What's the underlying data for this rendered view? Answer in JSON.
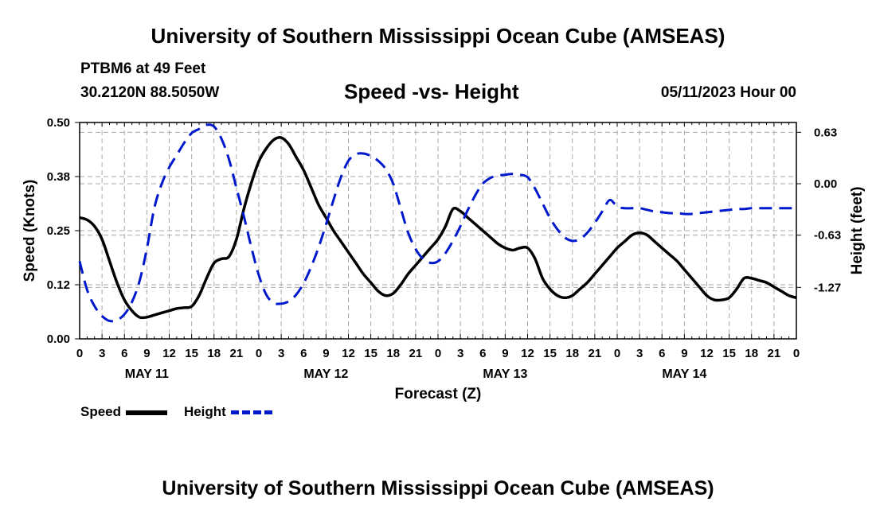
{
  "header": {
    "top_title": "University of Southern Mississippi Ocean Cube (AMSEAS)",
    "station": "PTBM6 at 49 Feet",
    "coords": "30.2120N  88.5050W",
    "date": "05/11/2023 Hour 00",
    "bottom_title": "University of Southern Mississippi Ocean Cube (AMSEAS)"
  },
  "chart_data": {
    "type": "line",
    "title": "Speed -vs- Height",
    "xlabel": "Forecast (Z)",
    "ylabel": "Speed (Knots)",
    "y2label": "Height (feet)",
    "xlim": [
      0,
      96
    ],
    "ylim": [
      0,
      0.5
    ],
    "y2lim": [
      -1.9,
      0.75
    ],
    "x_tick_labels": [
      "0",
      "3",
      "6",
      "9",
      "12",
      "15",
      "18",
      "21",
      "0",
      "3",
      "6",
      "9",
      "12",
      "15",
      "18",
      "21",
      "0",
      "3",
      "6",
      "9",
      "12",
      "15",
      "18",
      "21",
      "0",
      "3",
      "6",
      "9",
      "12",
      "15",
      "18",
      "21",
      "0"
    ],
    "y_tick_labels": [
      "0.00",
      "0.12",
      "0.25",
      "0.38",
      "0.50"
    ],
    "y_tick_values": [
      0,
      0.125,
      0.25,
      0.375,
      0.5
    ],
    "y2_tick_labels": [
      "-1.27",
      "-0.63",
      "0.00",
      "0.63"
    ],
    "y2_tick_values": [
      -1.27,
      -0.63,
      0.0,
      0.63
    ],
    "day_labels": [
      "MAY 11",
      "MAY 12",
      "MAY 13",
      "MAY 14"
    ],
    "day_label_x": [
      9,
      33,
      57,
      81
    ],
    "series": [
      {
        "name": "Speed",
        "color": "#000000",
        "dash": "solid",
        "axis": "left",
        "x": [
          0,
          1,
          2,
          3,
          4,
          5,
          6,
          7,
          8,
          9,
          10,
          11,
          12,
          13,
          14,
          15,
          16,
          17,
          18,
          19,
          20,
          21,
          22,
          23,
          24,
          25,
          26,
          27,
          28,
          29,
          30,
          31,
          32,
          33,
          34,
          35,
          36,
          37,
          38,
          39,
          40,
          41,
          42,
          43,
          44,
          45,
          46,
          47,
          48,
          49,
          50,
          51,
          52,
          53,
          54,
          55,
          56,
          57,
          58,
          59,
          60,
          61,
          62,
          63,
          64,
          65,
          66,
          67,
          68,
          69,
          70,
          71,
          72,
          73,
          74,
          75,
          76,
          77,
          78,
          79,
          80,
          81,
          82,
          83,
          84,
          85,
          86,
          87,
          88,
          89,
          90,
          91,
          92,
          93,
          94,
          95,
          96
        ],
        "values": [
          0.28,
          0.275,
          0.26,
          0.23,
          0.18,
          0.13,
          0.09,
          0.065,
          0.05,
          0.05,
          0.055,
          0.06,
          0.065,
          0.07,
          0.072,
          0.075,
          0.1,
          0.14,
          0.175,
          0.185,
          0.19,
          0.23,
          0.3,
          0.36,
          0.41,
          0.44,
          0.46,
          0.465,
          0.45,
          0.42,
          0.39,
          0.35,
          0.31,
          0.28,
          0.25,
          0.225,
          0.2,
          0.175,
          0.15,
          0.13,
          0.11,
          0.1,
          0.105,
          0.125,
          0.15,
          0.17,
          0.19,
          0.21,
          0.23,
          0.26,
          0.3,
          0.295,
          0.28,
          0.265,
          0.25,
          0.235,
          0.22,
          0.21,
          0.205,
          0.21,
          0.21,
          0.185,
          0.14,
          0.115,
          0.1,
          0.095,
          0.1,
          0.115,
          0.13,
          0.15,
          0.17,
          0.19,
          0.21,
          0.225,
          0.24,
          0.245,
          0.24,
          0.225,
          0.21,
          0.195,
          0.18,
          0.16,
          0.14,
          0.12,
          0.1,
          0.09,
          0.09,
          0.095,
          0.115,
          0.14,
          0.14,
          0.135,
          0.13,
          0.12,
          0.11,
          0.1,
          0.095
        ]
      },
      {
        "name": "Height",
        "color": "#0018cc",
        "dash": "dashed",
        "axis": "right",
        "x": [
          0,
          1,
          2,
          3,
          4,
          5,
          6,
          7,
          8,
          9,
          10,
          11,
          12,
          13,
          14,
          15,
          16,
          17,
          18,
          19,
          20,
          21,
          22,
          23,
          24,
          25,
          26,
          27,
          28,
          29,
          30,
          31,
          32,
          33,
          34,
          35,
          36,
          37,
          38,
          39,
          40,
          41,
          42,
          43,
          44,
          45,
          46,
          47,
          48,
          49,
          50,
          51,
          52,
          53,
          54,
          55,
          56,
          57,
          58,
          59,
          60,
          61,
          62,
          63,
          64,
          65,
          66,
          67,
          68,
          69,
          70,
          71,
          72,
          73,
          74,
          75,
          76,
          77,
          78,
          79,
          80,
          81,
          82,
          83,
          84,
          85,
          86,
          87,
          88,
          89,
          90,
          91,
          92,
          93,
          94,
          95,
          96
        ],
        "values": [
          -0.95,
          -1.3,
          -1.5,
          -1.62,
          -1.68,
          -1.67,
          -1.6,
          -1.45,
          -1.2,
          -0.8,
          -0.3,
          0.0,
          0.2,
          0.35,
          0.5,
          0.62,
          0.67,
          0.72,
          0.7,
          0.55,
          0.3,
          -0.05,
          -0.4,
          -0.78,
          -1.12,
          -1.36,
          -1.46,
          -1.47,
          -1.44,
          -1.36,
          -1.22,
          -1.02,
          -0.78,
          -0.5,
          -0.2,
          0.08,
          0.28,
          0.36,
          0.37,
          0.34,
          0.28,
          0.18,
          0.0,
          -0.3,
          -0.6,
          -0.8,
          -0.92,
          -0.97,
          -0.95,
          -0.85,
          -0.7,
          -0.52,
          -0.32,
          -0.14,
          0.0,
          0.07,
          0.1,
          0.11,
          0.12,
          0.11,
          0.08,
          -0.06,
          -0.24,
          -0.42,
          -0.56,
          -0.66,
          -0.7,
          -0.68,
          -0.6,
          -0.48,
          -0.34,
          -0.2,
          -0.28,
          -0.3,
          -0.3,
          -0.3,
          -0.32,
          -0.34,
          -0.35,
          -0.36,
          -0.36,
          -0.37,
          -0.37,
          -0.36,
          -0.35,
          -0.34,
          -0.33,
          -0.32,
          -0.31,
          -0.31,
          -0.3,
          -0.3,
          -0.3,
          -0.3,
          -0.3,
          -0.3,
          -0.3
        ]
      }
    ],
    "legend": [
      {
        "label": "Speed",
        "color": "#000000",
        "dash": "solid"
      },
      {
        "label": "Height",
        "color": "#0018cc",
        "dash": "dashed"
      }
    ]
  }
}
